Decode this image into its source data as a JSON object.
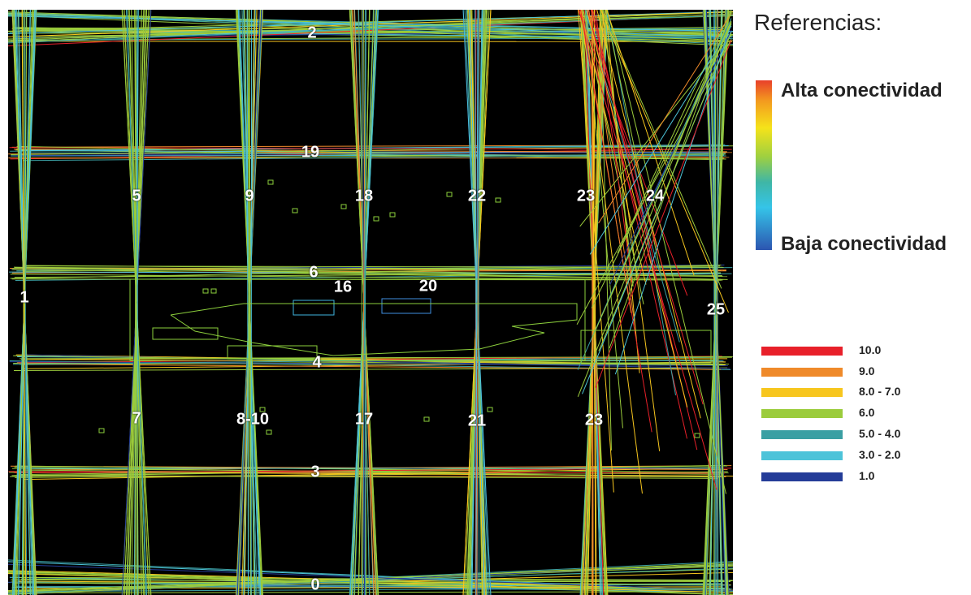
{
  "legend": {
    "title": "Referencias:",
    "high_label": "Alta conectividad",
    "low_label": "Baja conectividad",
    "classes": [
      {
        "label": "10.0",
        "color": "#e8202a"
      },
      {
        "label": "9.0",
        "color": "#ef8a2a"
      },
      {
        "label": "8.0 - 7.0",
        "color": "#f7c61e"
      },
      {
        "label": "6.0",
        "color": "#9bcc3c"
      },
      {
        "label": "5.0 - 4.0",
        "color": "#3a9fa3"
      },
      {
        "label": "3.0 - 2.0",
        "color": "#4cc3d9"
      },
      {
        "label": "1.0",
        "color": "#243c98"
      }
    ]
  },
  "map": {
    "street_numbers": [
      "2",
      "19",
      "5",
      "9",
      "18",
      "22",
      "23",
      "24",
      "6",
      "16",
      "20",
      "1",
      "25",
      "4",
      "7",
      "8-10",
      "17",
      "21",
      "23",
      "3",
      "0"
    ]
  }
}
